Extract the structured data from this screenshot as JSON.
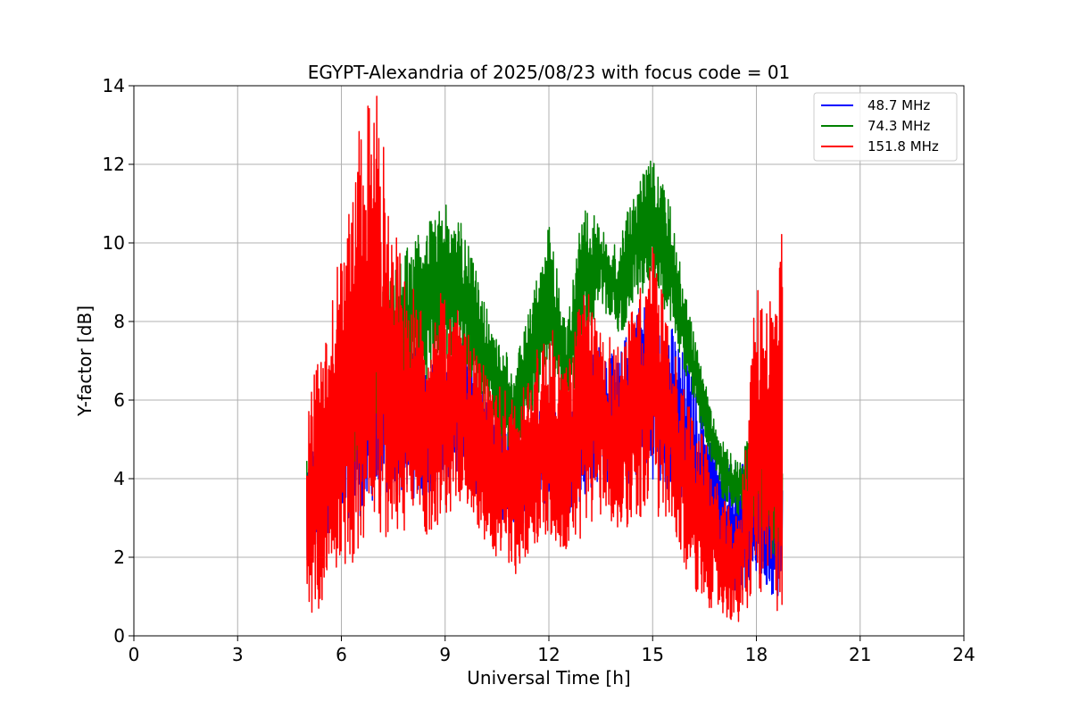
{
  "chart_data": {
    "type": "line",
    "title": "EGYPT-Alexandria of 2025/08/23 with focus code = 01",
    "xlabel": "Universal Time [h]",
    "ylabel": "Y-factor [dB]",
    "xlim": [
      0,
      24
    ],
    "ylim": [
      0,
      14
    ],
    "xticks": [
      0,
      3,
      6,
      9,
      12,
      15,
      18,
      21,
      24
    ],
    "yticks": [
      0,
      2,
      4,
      6,
      8,
      10,
      12,
      14
    ],
    "grid": true,
    "legend_position": "top-right",
    "series": [
      {
        "name": "48.7 MHz",
        "color": "#0000ff",
        "x": [
          5.0,
          5.5,
          6.0,
          6.5,
          7.0,
          7.5,
          8.0,
          8.5,
          9.0,
          9.5,
          10.0,
          10.5,
          11.0,
          11.5,
          12.0,
          12.5,
          13.0,
          13.5,
          14.0,
          14.5,
          15.0,
          15.5,
          16.0,
          16.5,
          17.0,
          17.5,
          18.0,
          18.5,
          18.75
        ],
        "y_low": [
          1.5,
          2.5,
          3.0,
          3.0,
          3.5,
          3.5,
          3.5,
          3.5,
          4.0,
          4.0,
          3.5,
          3.0,
          2.5,
          3.0,
          3.5,
          3.0,
          3.5,
          4.0,
          3.5,
          4.0,
          4.0,
          3.5,
          3.0,
          2.5,
          1.5,
          1.0,
          1.5,
          1.0,
          1.0
        ],
        "y_high": [
          4.5,
          5.5,
          6.5,
          7.0,
          7.5,
          8.0,
          7.5,
          7.0,
          7.5,
          7.5,
          6.5,
          5.5,
          5.0,
          5.5,
          6.0,
          5.5,
          7.0,
          7.5,
          7.0,
          8.5,
          8.5,
          8.0,
          7.0,
          5.5,
          4.5,
          4.5,
          5.0,
          5.0,
          4.0
        ]
      },
      {
        "name": "74.3 MHz",
        "color": "#008000",
        "x": [
          5.0,
          5.5,
          6.0,
          6.5,
          7.0,
          7.5,
          8.0,
          8.5,
          9.0,
          9.5,
          10.0,
          10.5,
          11.0,
          11.5,
          12.0,
          12.5,
          13.0,
          13.5,
          14.0,
          14.5,
          15.0,
          15.5,
          16.0,
          16.5,
          17.0,
          17.5,
          18.0,
          18.5,
          18.75
        ],
        "y_low": [
          2.5,
          3.5,
          4.0,
          4.5,
          5.0,
          5.5,
          6.0,
          6.5,
          7.0,
          7.0,
          6.0,
          5.0,
          4.5,
          5.5,
          7.0,
          5.5,
          7.0,
          8.5,
          7.5,
          8.5,
          9.0,
          8.0,
          6.5,
          5.0,
          3.5,
          3.0,
          3.0,
          2.0,
          2.0
        ],
        "y_high": [
          4.5,
          5.5,
          7.0,
          8.0,
          8.5,
          9.5,
          10.0,
          10.5,
          11.0,
          10.5,
          9.0,
          7.5,
          7.0,
          8.5,
          10.5,
          8.0,
          11.0,
          10.5,
          10.0,
          11.5,
          12.2,
          11.0,
          8.5,
          6.5,
          5.0,
          4.5,
          5.5,
          5.5,
          4.5
        ]
      },
      {
        "name": "151.8 MHz",
        "color": "#ff0000",
        "x": [
          5.0,
          5.5,
          6.0,
          6.5,
          7.0,
          7.5,
          8.0,
          8.5,
          9.0,
          9.5,
          10.0,
          10.5,
          11.0,
          11.5,
          12.0,
          12.5,
          13.0,
          13.5,
          14.0,
          14.5,
          15.0,
          15.5,
          16.0,
          16.5,
          17.0,
          17.5,
          18.0,
          18.5,
          18.75
        ],
        "y_low": [
          0.4,
          0.8,
          1.5,
          2.0,
          2.5,
          2.5,
          2.5,
          2.5,
          3.0,
          3.5,
          2.5,
          2.0,
          1.5,
          2.0,
          2.5,
          2.0,
          2.5,
          3.0,
          2.5,
          3.0,
          3.0,
          2.5,
          1.5,
          0.8,
          0.5,
          0.2,
          1.0,
          0.5,
          0.6
        ],
        "y_high": [
          6.0,
          7.5,
          10.0,
          13.0,
          14.0,
          10.5,
          9.0,
          8.0,
          9.0,
          8.0,
          7.0,
          6.5,
          6.0,
          7.0,
          8.0,
          7.0,
          9.0,
          8.0,
          7.5,
          8.5,
          10.0,
          8.0,
          6.0,
          5.0,
          3.5,
          3.0,
          9.0,
          9.0,
          10.4
        ]
      }
    ]
  }
}
